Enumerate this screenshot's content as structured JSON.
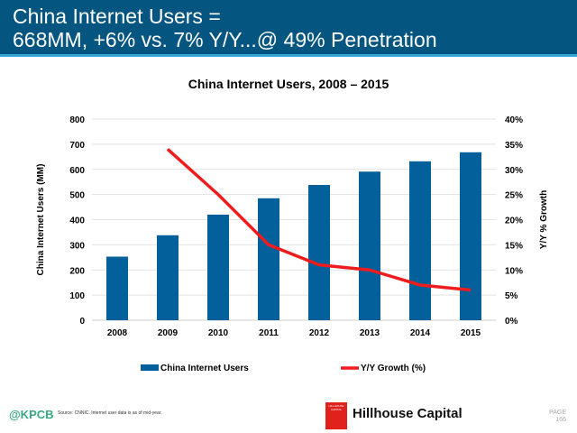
{
  "header": {
    "line1": "China Internet Users =",
    "line2": "668MM, +6% vs. 7% Y/Y...@ 49% Penetration"
  },
  "chart_data": {
    "type": "bar",
    "title": "China Internet Users, 2008 – 2015",
    "categories": [
      "2008",
      "2009",
      "2010",
      "2011",
      "2012",
      "2013",
      "2014",
      "2015"
    ],
    "series": [
      {
        "name": "China Internet Users",
        "axis": "left",
        "kind": "bar",
        "color": "#04609a",
        "values": [
          253,
          338,
          420,
          485,
          538,
          591,
          632,
          668
        ]
      },
      {
        "name": "Y/Y Growth (%)",
        "axis": "right",
        "kind": "line",
        "color": "#ee1c1c",
        "values": [
          null,
          34,
          25,
          15,
          11,
          10,
          7,
          6
        ]
      }
    ],
    "ylabel": "China Internet Users (MM)",
    "ylim": [
      0,
      800
    ],
    "yticks": [
      "0",
      "100",
      "200",
      "300",
      "400",
      "500",
      "600",
      "700",
      "800"
    ],
    "y2label": "Y/Y % Growth",
    "y2lim": [
      0,
      40
    ],
    "y2ticks": [
      "0%",
      "5%",
      "10%",
      "15%",
      "20%",
      "25%",
      "30%",
      "35%",
      "40%"
    ],
    "grid": true,
    "legend": "bottom"
  },
  "footer": {
    "source": "Source: CNNIC. Internet user data is as of mid-year.",
    "kpcb": "@KPCB",
    "logo_text": "HILLHOUSE CAPITAL",
    "company": "Hillhouse Capital",
    "page_label": "PAGE",
    "page_number": "166"
  }
}
